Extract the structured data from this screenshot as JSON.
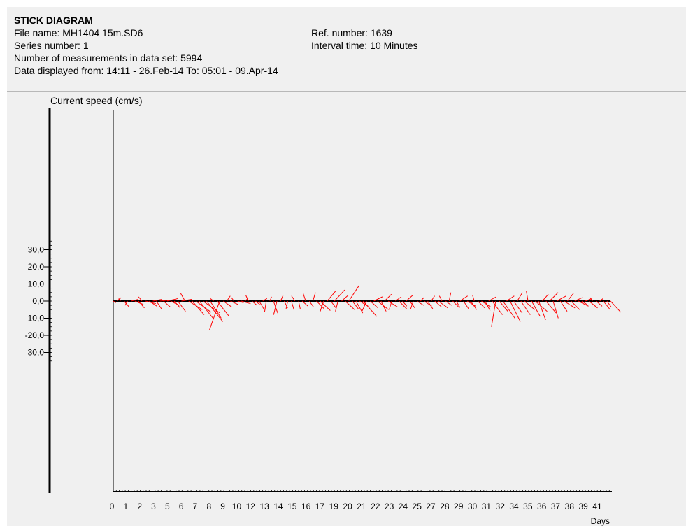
{
  "header": {
    "title": "STICK DIAGRAM",
    "file_name": "File name: MH1404 15m.SD6",
    "series_number": "Series number: 1",
    "measurements": "Number of measurements in data set: 5994",
    "displayed": "Data displayed from: 14:11 - 26.Feb-14   To: 05:01 - 09.Apr-14",
    "ref_number": "Ref. number: 1639",
    "interval": "Interval time: 10 Minutes"
  },
  "chart_data": {
    "type": "stick",
    "title": "STICK DIAGRAM",
    "ylabel": "Current speed (cm/s)",
    "xlabel": "Days",
    "ylim": [
      -30,
      30
    ],
    "y_ticks": [
      "30,0",
      "20,0",
      "10,0",
      "0,0",
      "-10,0",
      "-20,0",
      "-30,0"
    ],
    "x_tick_labels": [
      "0",
      "1",
      "2",
      "3",
      "5",
      "6",
      "7",
      "8",
      "9",
      "10",
      "12",
      "13",
      "14",
      "15",
      "16",
      "17",
      "19",
      "20",
      "21",
      "22",
      "23",
      "24",
      "25",
      "27",
      "28",
      "29",
      "30",
      "31",
      "32",
      "34",
      "35",
      "36",
      "37",
      "38",
      "39",
      "41"
    ],
    "xlim": [
      0,
      41.6
    ],
    "stick_color": "#ff0000",
    "axis_color": "#000000",
    "series": [
      {
        "name": "",
        "sticks": [
          {
            "day": 0.0,
            "u": 1.5,
            "v": -1.0
          },
          {
            "day": 0.3,
            "u": 2.5,
            "v": 2.0
          },
          {
            "day": 0.6,
            "u": -1.0,
            "v": 1.5
          },
          {
            "day": 0.9,
            "u": 3.0,
            "v": -3.5
          },
          {
            "day": 1.2,
            "u": -1.5,
            "v": -2.5
          },
          {
            "day": 1.5,
            "u": 4.0,
            "v": 1.0
          },
          {
            "day": 1.8,
            "u": 5.0,
            "v": -2.0
          },
          {
            "day": 2.1,
            "u": 3.5,
            "v": -4.0
          },
          {
            "day": 2.4,
            "u": -2.0,
            "v": 2.5
          },
          {
            "day": 2.7,
            "u": 6.0,
            "v": -1.5
          },
          {
            "day": 3.0,
            "u": 4.5,
            "v": -3.0
          },
          {
            "day": 3.3,
            "u": 5.5,
            "v": 1.0
          },
          {
            "day": 3.6,
            "u": 3.0,
            "v": -4.5
          },
          {
            "day": 3.9,
            "u": 5.0,
            "v": 0.5
          },
          {
            "day": 4.2,
            "u": 4.0,
            "v": -3.5
          },
          {
            "day": 4.5,
            "u": 6.5,
            "v": 1.5
          },
          {
            "day": 4.8,
            "u": 5.0,
            "v": -2.5
          },
          {
            "day": 5.1,
            "u": 3.5,
            "v": -4.0
          },
          {
            "day": 5.4,
            "u": 4.5,
            "v": -6.0
          },
          {
            "day": 5.7,
            "u": 6.0,
            "v": 1.0
          },
          {
            "day": 6.0,
            "u": -2.5,
            "v": 4.5
          },
          {
            "day": 6.3,
            "u": 8.0,
            "v": -5.0
          },
          {
            "day": 6.6,
            "u": 7.0,
            "v": -8.0
          },
          {
            "day": 6.9,
            "u": 9.0,
            "v": -6.5
          },
          {
            "day": 7.2,
            "u": 8.0,
            "v": -10.0
          },
          {
            "day": 7.5,
            "u": 10.0,
            "v": -7.0
          },
          {
            "day": 7.8,
            "u": 9.5,
            "v": -12.0
          },
          {
            "day": 8.1,
            "u": 6.5,
            "v": -10.0
          },
          {
            "day": 8.4,
            "u": -2.0,
            "v": 1.5
          },
          {
            "day": 8.7,
            "u": 7.0,
            "v": -9.0
          },
          {
            "day": 8.9,
            "u": -6.0,
            "v": -17.0
          },
          {
            "day": 9.2,
            "u": 5.0,
            "v": -3.5
          },
          {
            "day": 9.5,
            "u": 2.0,
            "v": 3.0
          },
          {
            "day": 9.8,
            "u": 4.5,
            "v": -2.0
          },
          {
            "day": 10.1,
            "u": -1.5,
            "v": 2.0
          },
          {
            "day": 10.4,
            "u": 3.5,
            "v": -1.0
          },
          {
            "day": 10.7,
            "u": 5.5,
            "v": -1.5
          },
          {
            "day": 11.0,
            "u": 2.0,
            "v": 1.5
          },
          {
            "day": 11.3,
            "u": -1.5,
            "v": 3.5
          },
          {
            "day": 11.6,
            "u": 3.0,
            "v": -2.5
          },
          {
            "day": 11.9,
            "u": 2.5,
            "v": -2.0
          },
          {
            "day": 12.2,
            "u": 3.0,
            "v": -5.0
          },
          {
            "day": 12.5,
            "u": 2.5,
            "v": 1.5
          },
          {
            "day": 12.8,
            "u": -1.0,
            "v": -6.5
          },
          {
            "day": 13.1,
            "u": 1.0,
            "v": 2.5
          },
          {
            "day": 13.4,
            "u": 2.5,
            "v": -7.0
          },
          {
            "day": 13.7,
            "u": -2.0,
            "v": -8.0
          },
          {
            "day": 14.0,
            "u": 1.5,
            "v": 3.5
          },
          {
            "day": 14.3,
            "u": 2.0,
            "v": -4.0
          },
          {
            "day": 14.6,
            "u": -1.0,
            "v": -4.5
          },
          {
            "day": 14.9,
            "u": 1.5,
            "v": -5.0
          },
          {
            "day": 15.2,
            "u": -2.0,
            "v": 3.0
          },
          {
            "day": 15.5,
            "u": 1.0,
            "v": -4.5
          },
          {
            "day": 15.8,
            "u": 3.5,
            "v": -3.0
          },
          {
            "day": 16.1,
            "u": -1.5,
            "v": 4.5
          },
          {
            "day": 16.4,
            "u": 2.5,
            "v": -3.5
          },
          {
            "day": 16.7,
            "u": 1.5,
            "v": 5.0
          },
          {
            "day": 17.0,
            "u": 4.5,
            "v": -4.5
          },
          {
            "day": 17.3,
            "u": 6.0,
            "v": -5.5
          },
          {
            "day": 17.6,
            "u": -2.0,
            "v": -6.0
          },
          {
            "day": 17.9,
            "u": 5.0,
            "v": 6.0
          },
          {
            "day": 18.2,
            "u": 3.0,
            "v": -4.0
          },
          {
            "day": 18.5,
            "u": 6.0,
            "v": 6.5
          },
          {
            "day": 18.8,
            "u": -1.5,
            "v": -6.0
          },
          {
            "day": 19.1,
            "u": 4.0,
            "v": 3.5
          },
          {
            "day": 19.4,
            "u": 5.5,
            "v": -5.0
          },
          {
            "day": 19.7,
            "u": 6.0,
            "v": 9.0
          },
          {
            "day": 20.0,
            "u": 3.5,
            "v": -4.5
          },
          {
            "day": 20.3,
            "u": 4.0,
            "v": -7.0
          },
          {
            "day": 20.6,
            "u": 5.0,
            "v": -3.0
          },
          {
            "day": 20.9,
            "u": 8.0,
            "v": -9.0
          },
          {
            "day": 21.2,
            "u": -3.0,
            "v": -6.5
          },
          {
            "day": 21.5,
            "u": 4.5,
            "v": -4.0
          },
          {
            "day": 21.8,
            "u": 5.0,
            "v": 2.5
          },
          {
            "day": 22.1,
            "u": 6.5,
            "v": -5.0
          },
          {
            "day": 22.4,
            "u": 3.0,
            "v": -6.0
          },
          {
            "day": 22.7,
            "u": 4.0,
            "v": 4.0
          },
          {
            "day": 23.0,
            "u": 5.5,
            "v": -3.5
          },
          {
            "day": 23.3,
            "u": -1.5,
            "v": -5.0
          },
          {
            "day": 23.6,
            "u": 3.5,
            "v": 2.5
          },
          {
            "day": 23.9,
            "u": 4.5,
            "v": -4.5
          },
          {
            "day": 24.2,
            "u": 2.5,
            "v": -3.0
          },
          {
            "day": 24.5,
            "u": 4.0,
            "v": 3.5
          },
          {
            "day": 24.8,
            "u": 3.0,
            "v": -4.0
          },
          {
            "day": 25.1,
            "u": -1.5,
            "v": -4.5
          },
          {
            "day": 25.4,
            "u": 4.0,
            "v": -2.5
          },
          {
            "day": 25.7,
            "u": 2.0,
            "v": 2.0
          },
          {
            "day": 26.0,
            "u": 4.5,
            "v": -3.0
          },
          {
            "day": 26.3,
            "u": 3.0,
            "v": -4.5
          },
          {
            "day": 26.6,
            "u": 2.0,
            "v": 3.0
          },
          {
            "day": 26.9,
            "u": 4.0,
            "v": -3.5
          },
          {
            "day": 27.2,
            "u": 5.5,
            "v": -4.0
          },
          {
            "day": 27.5,
            "u": -1.5,
            "v": 3.0
          },
          {
            "day": 27.8,
            "u": 3.5,
            "v": -2.5
          },
          {
            "day": 28.1,
            "u": 1.0,
            "v": 5.0
          },
          {
            "day": 28.4,
            "u": 4.0,
            "v": -4.0
          },
          {
            "day": 28.7,
            "u": 2.0,
            "v": -3.5
          },
          {
            "day": 29.0,
            "u": 4.5,
            "v": 3.0
          },
          {
            "day": 29.3,
            "u": 3.0,
            "v": -4.5
          },
          {
            "day": 29.6,
            "u": 5.0,
            "v": -3.0
          },
          {
            "day": 29.9,
            "u": 3.5,
            "v": -5.0
          },
          {
            "day": 30.2,
            "u": -1.0,
            "v": 3.5
          },
          {
            "day": 30.5,
            "u": 4.0,
            "v": -4.0
          },
          {
            "day": 30.8,
            "u": 5.5,
            "v": -3.5
          },
          {
            "day": 31.1,
            "u": 3.0,
            "v": -5.5
          },
          {
            "day": 31.4,
            "u": 4.5,
            "v": 2.5
          },
          {
            "day": 31.7,
            "u": 6.0,
            "v": -8.0
          },
          {
            "day": 32.0,
            "u": -2.5,
            "v": -15.0
          },
          {
            "day": 32.3,
            "u": 5.0,
            "v": -6.0
          },
          {
            "day": 32.6,
            "u": 7.0,
            "v": -10.0
          },
          {
            "day": 32.9,
            "u": 4.5,
            "v": 3.0
          },
          {
            "day": 33.2,
            "u": 6.0,
            "v": -12.0
          },
          {
            "day": 33.5,
            "u": 5.0,
            "v": -7.0
          },
          {
            "day": 33.8,
            "u": 3.0,
            "v": 5.0
          },
          {
            "day": 34.1,
            "u": 5.5,
            "v": -8.0
          },
          {
            "day": 34.4,
            "u": 6.0,
            "v": -5.0
          },
          {
            "day": 34.7,
            "u": -1.0,
            "v": 6.0
          },
          {
            "day": 35.0,
            "u": 5.0,
            "v": -9.0
          },
          {
            "day": 35.3,
            "u": 7.0,
            "v": -6.0
          },
          {
            "day": 35.6,
            "u": 4.0,
            "v": -11.0
          },
          {
            "day": 35.9,
            "u": 3.5,
            "v": 4.0
          },
          {
            "day": 36.2,
            "u": 6.0,
            "v": -7.0
          },
          {
            "day": 36.5,
            "u": 5.0,
            "v": 5.0
          },
          {
            "day": 36.8,
            "u": 3.0,
            "v": -10.0
          },
          {
            "day": 37.1,
            "u": 5.5,
            "v": 3.0
          },
          {
            "day": 37.4,
            "u": 4.0,
            "v": -6.0
          },
          {
            "day": 37.7,
            "u": 6.5,
            "v": -4.0
          },
          {
            "day": 38.0,
            "u": 3.5,
            "v": 4.5
          },
          {
            "day": 38.3,
            "u": 5.0,
            "v": -5.0
          },
          {
            "day": 38.6,
            "u": 4.5,
            "v": 2.0
          },
          {
            "day": 38.9,
            "u": 6.0,
            "v": -3.0
          },
          {
            "day": 39.2,
            "u": 3.0,
            "v": -2.0
          },
          {
            "day": 39.5,
            "u": 4.0,
            "v": 1.5
          },
          {
            "day": 39.8,
            "u": 5.0,
            "v": -4.0
          },
          {
            "day": 40.1,
            "u": -1.5,
            "v": 2.0
          },
          {
            "day": 40.4,
            "u": 3.5,
            "v": -3.0
          },
          {
            "day": 40.7,
            "u": 2.0,
            "v": 1.5
          },
          {
            "day": 41.0,
            "u": 4.0,
            "v": -5.0
          },
          {
            "day": 41.3,
            "u": 2.5,
            "v": -3.5
          },
          {
            "day": 41.6,
            "u": 6.0,
            "v": -6.5
          }
        ]
      }
    ]
  }
}
